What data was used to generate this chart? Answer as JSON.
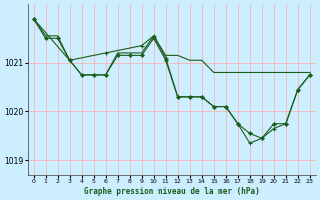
{
  "title": "Graphe pression niveau de la mer (hPa)",
  "bg_color": "#cceeff",
  "grid_color_v": "#ffaaaa",
  "grid_color_h": "#ddeeee",
  "line_color": "#1a5c1a",
  "xlim": [
    -0.5,
    23.5
  ],
  "ylim": [
    1018.7,
    1022.2
  ],
  "yticks": [
    1019,
    1020,
    1021
  ],
  "xticks": [
    0,
    1,
    2,
    3,
    4,
    5,
    6,
    7,
    8,
    9,
    10,
    11,
    12,
    13,
    14,
    15,
    16,
    17,
    18,
    19,
    20,
    21,
    22,
    23
  ],
  "series1_x": [
    0,
    1,
    2,
    3,
    4,
    5,
    6,
    7,
    8,
    9,
    10,
    11,
    12,
    13,
    14,
    15,
    16,
    17,
    18,
    19,
    20,
    21,
    22,
    23
  ],
  "series1_y": [
    1021.9,
    1021.55,
    1021.55,
    1021.05,
    1020.75,
    1020.75,
    1020.75,
    1021.2,
    1021.2,
    1021.2,
    1021.55,
    1021.15,
    1021.15,
    1021.05,
    1021.05,
    1020.8,
    1020.8,
    1020.8,
    1020.8,
    1020.8,
    1020.8,
    1020.8,
    1020.8,
    1020.8
  ],
  "series2_x": [
    0,
    1,
    2,
    3,
    4,
    5,
    6,
    7,
    8,
    9,
    10,
    11,
    12,
    13,
    14,
    15,
    16,
    17,
    18,
    19,
    20,
    21,
    22,
    23
  ],
  "series2_y": [
    1021.9,
    1021.5,
    1021.5,
    1021.05,
    1020.75,
    1020.75,
    1020.75,
    1021.15,
    1021.15,
    1021.15,
    1021.5,
    1021.05,
    1020.3,
    1020.3,
    1020.3,
    1020.1,
    1020.1,
    1019.75,
    1019.55,
    1019.45,
    1019.75,
    1019.75,
    1020.45,
    1020.75
  ],
  "series3_x": [
    0,
    3,
    6,
    9,
    10,
    11,
    12,
    13,
    14,
    15,
    16,
    17,
    18,
    19,
    20,
    21,
    22,
    23
  ],
  "series3_y": [
    1021.9,
    1021.05,
    1021.2,
    1021.35,
    1021.55,
    1021.1,
    1020.3,
    1020.3,
    1020.3,
    1020.1,
    1020.1,
    1019.75,
    1019.35,
    1019.45,
    1019.65,
    1019.75,
    1020.45,
    1020.75
  ]
}
